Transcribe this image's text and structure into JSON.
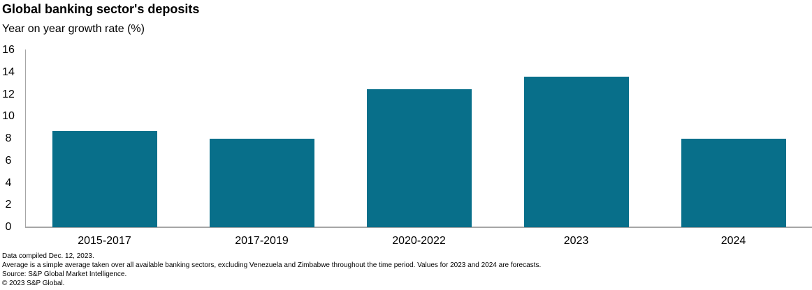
{
  "title": "Global banking sector's deposits",
  "subtitle": "Year on year growth rate (%)",
  "chart_data": {
    "type": "bar",
    "categories": [
      "2015-2017",
      "2017-2019",
      "2020-2022",
      "2023",
      "2024"
    ],
    "values": [
      8.7,
      8.0,
      12.5,
      13.6,
      8.0
    ],
    "title": "Global banking sector's deposits",
    "xlabel": "",
    "ylabel": "Year on year growth rate (%)",
    "ylim": [
      0,
      16
    ],
    "yticks": [
      0,
      2,
      4,
      6,
      8,
      10,
      12,
      14,
      16
    ],
    "grid": false,
    "legend_position": "none",
    "bar_color": "#086F8A",
    "axis_color": "#A6A6A6",
    "notes": "Values for 2023 and 2024 are forecasts."
  },
  "footer": {
    "lines": [
      "Data compiled Dec. 12, 2023.",
      "Average is a simple average taken over all available banking sectors, excluding Venezuela and Zimbabwe throughout the time period. Values for 2023 and 2024 are forecasts.",
      "Source: S&P Global Market Intelligence.",
      "© 2023 S&P Global."
    ]
  }
}
